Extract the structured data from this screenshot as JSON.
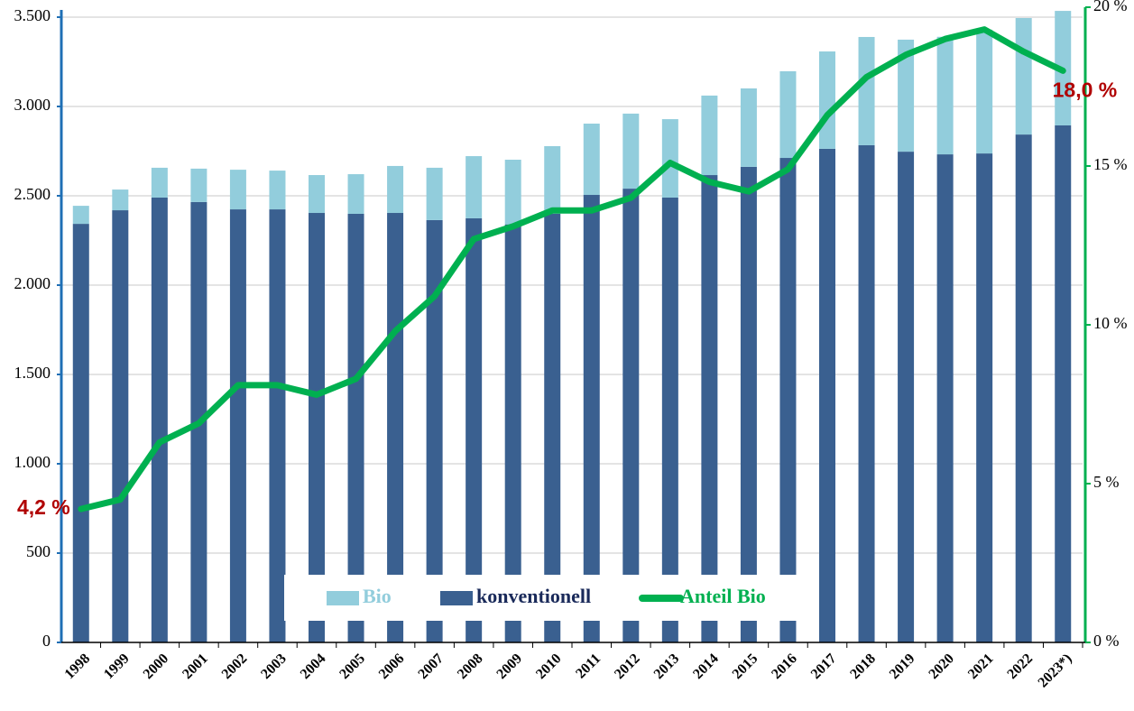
{
  "chart_data": {
    "type": "bar",
    "categories": [
      "1998",
      "1999",
      "2000",
      "2001",
      "2002",
      "2003",
      "2004",
      "2005",
      "2006",
      "2007",
      "2008",
      "2009",
      "2010",
      "2011",
      "2012",
      "2013",
      "2014",
      "2015",
      "2016",
      "2017",
      "2018",
      "2019",
      "2020",
      "2021",
      "2022",
      "2023*)"
    ],
    "stacked": true,
    "series": [
      {
        "name": "konventionell",
        "color": "#3a6090",
        "values": [
          2343,
          2419,
          2490,
          2465,
          2424,
          2424,
          2404,
          2399,
          2404,
          2364,
          2374,
          2340,
          2400,
          2505,
          2540,
          2490,
          2616,
          2662,
          2712,
          2763,
          2783,
          2747,
          2732,
          2737,
          2843,
          2894
        ]
      },
      {
        "name": "Bio",
        "color": "#92cddc",
        "values": [
          101,
          116,
          167,
          187,
          222,
          217,
          212,
          222,
          263,
          293,
          348,
          362,
          378,
          399,
          420,
          439,
          445,
          439,
          485,
          545,
          606,
          627,
          658,
          693,
          652,
          641
        ]
      },
      {
        "name": "Anteil Bio",
        "type": "line",
        "axis": "y2",
        "color": "#00b050",
        "values": [
          4.2,
          4.5,
          6.3,
          6.9,
          8.1,
          8.1,
          7.8,
          8.3,
          9.8,
          10.9,
          12.7,
          13.1,
          13.6,
          13.6,
          14.0,
          15.1,
          14.5,
          14.2,
          14.9,
          16.6,
          17.8,
          18.5,
          19.0,
          19.3,
          18.6,
          18.0
        ],
        "value_labels": [
          "4,2 %",
          null,
          null,
          null,
          null,
          null,
          null,
          null,
          null,
          null,
          null,
          null,
          null,
          null,
          null,
          null,
          null,
          null,
          null,
          null,
          null,
          null,
          null,
          null,
          null,
          "18,0 %"
        ]
      }
    ],
    "ylim": [
      0,
      3500
    ],
    "yticks": [
      0,
      500,
      {
        "value": 1000,
        "label": "1.000"
      },
      {
        "value": 1500,
        "label": "1.500"
      },
      {
        "value": 2000,
        "label": "2.000"
      },
      {
        "value": 2500,
        "label": "2.500"
      },
      {
        "value": 3000,
        "label": "3.000"
      },
      {
        "value": 3500,
        "label": "3.500"
      }
    ],
    "y2lim": [
      0,
      20
    ],
    "y2ticks": [
      {
        "value": 0,
        "label": "0 %"
      },
      {
        "value": 5,
        "label": "5 %"
      },
      {
        "value": 10,
        "label": "10 %"
      },
      {
        "value": 15,
        "label": "15 %"
      },
      {
        "value": 20,
        "label": "20 %"
      }
    ],
    "grid": true,
    "legend": "bottom"
  }
}
